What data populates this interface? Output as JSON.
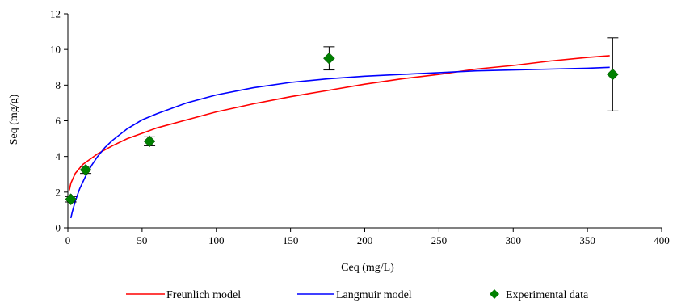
{
  "chart_data": {
    "type": "scatter",
    "xlabel": "Ceq (mg/L)",
    "ylabel": "Seq  (mg/g)",
    "xlim": [
      0,
      400
    ],
    "ylim": [
      0,
      12
    ],
    "xticks": [
      0,
      50,
      100,
      150,
      200,
      250,
      300,
      350,
      400
    ],
    "yticks": [
      0,
      2,
      4,
      6,
      8,
      10,
      12
    ],
    "grid": false,
    "legend": "bottom",
    "series": [
      {
        "name": "Freunlich model",
        "kind": "line",
        "color": "#ff0000",
        "x": [
          1,
          2,
          5,
          10,
          20,
          30,
          40,
          50,
          60,
          80,
          100,
          125,
          150,
          175,
          200,
          225,
          250,
          275,
          300,
          325,
          350,
          365
        ],
        "y": [
          2.1,
          2.5,
          3.05,
          3.55,
          4.15,
          4.6,
          5.0,
          5.3,
          5.6,
          6.05,
          6.5,
          6.95,
          7.35,
          7.7,
          8.05,
          8.35,
          8.6,
          8.9,
          9.1,
          9.35,
          9.55,
          9.65
        ]
      },
      {
        "name": "Langmuir model",
        "kind": "line",
        "color": "#0000ff",
        "x": [
          2,
          3,
          5,
          8,
          12,
          16,
          20,
          25,
          30,
          40,
          50,
          60,
          80,
          100,
          125,
          150,
          175,
          200,
          225,
          250,
          275,
          300,
          325,
          350,
          365
        ],
        "y": [
          0.55,
          0.9,
          1.5,
          2.2,
          2.9,
          3.5,
          4.0,
          4.5,
          4.9,
          5.55,
          6.05,
          6.4,
          7.0,
          7.45,
          7.85,
          8.15,
          8.35,
          8.5,
          8.6,
          8.7,
          8.8,
          8.85,
          8.9,
          8.95,
          9.0
        ]
      },
      {
        "name": "Experimental data",
        "kind": "scatter",
        "color": "#008000",
        "x": [
          2,
          12,
          55,
          176,
          367
        ],
        "y": [
          1.6,
          3.25,
          4.85,
          9.5,
          8.6
        ],
        "err": [
          0.15,
          0.2,
          0.25,
          0.65,
          2.05
        ]
      }
    ]
  }
}
